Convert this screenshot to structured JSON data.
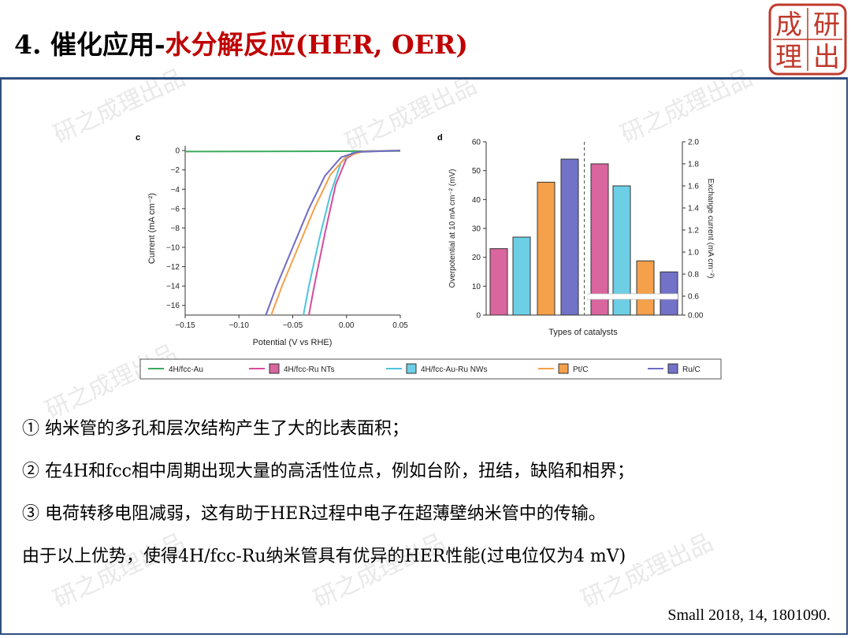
{
  "slide": {
    "title_prefix": "4. 催化应用-",
    "title_highlight": "水分解反应(HER, OER)",
    "logo_text": [
      "成",
      "研",
      "理",
      "出"
    ],
    "watermark": "研之成理出品",
    "bullets": [
      "① 纳米管的多孔和层次结构产生了大的比表面积；",
      "② 在4H和fcc相中周期出现大量的高活性位点，例如台阶，扭结，缺陷和相界；",
      "③ 电荷转移电阻减弱，这有助于HER过程中电子在超薄壁纳米管中的传输。",
      "由于以上优势，使得4H/fcc-Ru纳米管具有优异的HER性能(过电位仅为4 mV)"
    ],
    "reference": "Small 2018, 14, 1801090.",
    "colors": {
      "title_red": "#c00000",
      "frame": "#2f4f7f",
      "logo_red": "#c0392b"
    }
  },
  "chart_data": [
    {
      "type": "line",
      "panel_label": "c",
      "xlabel": "Potential (V vs RHE)",
      "ylabel": "Current (mA cm⁻²)",
      "xlim": [
        -0.15,
        0.05
      ],
      "ylim": [
        -17,
        0.5
      ],
      "xticks": [
        -0.15,
        -0.1,
        -0.05,
        0.0,
        0.05
      ],
      "xtick_labels": [
        "−0.15",
        "−0.10",
        "−0.05",
        "0.00",
        "0.05"
      ],
      "yticks": [
        0,
        -2,
        -4,
        -6,
        -8,
        -10,
        -12,
        -14,
        -16
      ],
      "ytick_labels": [
        "0",
        "−2",
        "−4",
        "−6",
        "−8",
        "−10",
        "−12",
        "−14",
        "−16"
      ],
      "series": [
        {
          "name": "4H/fcc-Au",
          "color": "#3aaa5c",
          "x": [
            -0.15,
            0.05
          ],
          "y": [
            -0.1,
            -0.05
          ]
        },
        {
          "name": "4H/fcc-Ru NTs",
          "color": "#d64b9a",
          "x": [
            -0.035,
            -0.03,
            -0.02,
            -0.01,
            0.0,
            0.01,
            0.02,
            0.05
          ],
          "y": [
            -17,
            -14,
            -8.5,
            -3.5,
            -0.8,
            -0.15,
            -0.05,
            0
          ]
        },
        {
          "name": "4H/fcc-Au-Ru NWs",
          "color": "#4ec3dd",
          "x": [
            -0.04,
            -0.035,
            -0.025,
            -0.015,
            -0.005,
            0.005,
            0.02,
            0.05
          ],
          "y": [
            -17,
            -14,
            -9,
            -4.5,
            -1.2,
            -0.25,
            -0.05,
            0
          ]
        },
        {
          "name": "Pt/C",
          "color": "#f5a04a",
          "x": [
            -0.07,
            -0.06,
            -0.045,
            -0.03,
            -0.015,
            0.0,
            0.015,
            0.05
          ],
          "y": [
            -17,
            -14,
            -10,
            -6,
            -2.5,
            -0.6,
            -0.1,
            0
          ]
        },
        {
          "name": "Ru/C",
          "color": "#6e6cc4",
          "x": [
            -0.075,
            -0.065,
            -0.05,
            -0.035,
            -0.02,
            -0.005,
            0.01,
            0.05
          ],
          "y": [
            -17,
            -14,
            -10,
            -6,
            -2.6,
            -0.7,
            -0.15,
            0
          ]
        }
      ]
    },
    {
      "type": "bar",
      "panel_label": "d",
      "xlabel": "Types of catalysts",
      "ylabel": "Overpotential at 10 mA cm⁻² (mV)",
      "ylabel_right": "Exchange current (mA cm⁻²)",
      "ylim": [
        0,
        60
      ],
      "yticks": [
        0,
        10,
        20,
        30,
        40,
        50,
        60
      ],
      "ylim_right": [
        0,
        2.0
      ],
      "yticks_right": [
        "0.00",
        "0.6",
        "0.8",
        "1.0",
        "1.2",
        "1.4",
        "1.6",
        "1.8",
        "2.0"
      ],
      "series": [
        {
          "name": "Overpotential",
          "categories": [
            "4H/fcc-Ru NTs",
            "4H/fcc-Au-Ru NWs",
            "Pt/C",
            "Ru/C"
          ],
          "values": [
            23,
            27,
            46,
            54
          ]
        },
        {
          "name": "Exchange current",
          "categories": [
            "4H/fcc-Ru NTs",
            "4H/fcc-Au-Ru NWs",
            "Pt/C",
            "Ru/C"
          ],
          "values": [
            1.8,
            1.6,
            0.92,
            0.82
          ]
        }
      ],
      "colors": [
        "#d9669e",
        "#6ccfe6",
        "#f5a04a",
        "#7272c8"
      ]
    }
  ],
  "legend": {
    "items": [
      {
        "label": "4H/fcc-Au",
        "color": "#3aaa5c",
        "swatch": "line"
      },
      {
        "label": "4H/fcc-Ru NTs",
        "color": "#d64b9a",
        "swatch": "box",
        "fill": "#d9669e"
      },
      {
        "label": "4H/fcc-Au-Ru NWs",
        "color": "#4ec3dd",
        "swatch": "box",
        "fill": "#6ccfe6"
      },
      {
        "label": "Pt/C",
        "color": "#f5a04a",
        "swatch": "box",
        "fill": "#f5a04a"
      },
      {
        "label": "Ru/C",
        "color": "#6e6cc4",
        "swatch": "box",
        "fill": "#7272c8"
      }
    ]
  }
}
